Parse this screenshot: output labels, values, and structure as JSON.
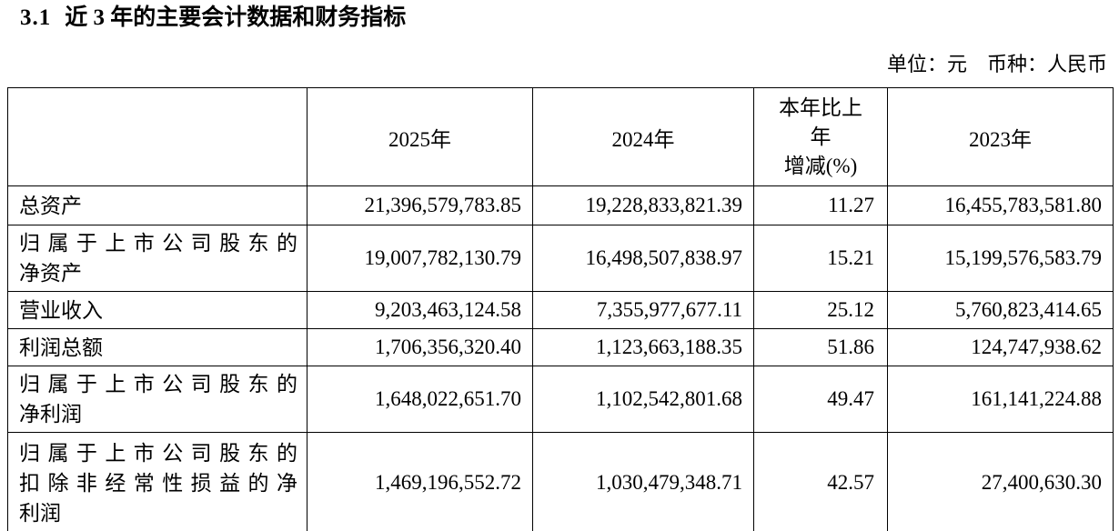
{
  "document": {
    "section_number": "3.1",
    "section_title": "近 3 年的主要会计数据和财务指标",
    "unit_note": "单位：元　币种：人民币"
  },
  "table": {
    "indicator_header": "",
    "year_headers": [
      "2025年",
      "2024年",
      "2023年"
    ],
    "change_header_lines": [
      "本年比上",
      "年",
      "增减(%)"
    ],
    "change_header_full": "本年比上年增减(%)",
    "rows": [
      {
        "indicator": "总资产",
        "indicator_lines": [
          "总资产"
        ],
        "values": [
          "21,396,579,783.85",
          "19,228,833,821.39",
          "11.27",
          "16,455,783,581.80"
        ]
      },
      {
        "indicator": "归属于上市公司股东的净资产",
        "indicator_lines": [
          "归属于上市公司股东的",
          "净资产"
        ],
        "values": [
          "19,007,782,130.79",
          "16,498,507,838.97",
          "15.21",
          "15,199,576,583.79"
        ]
      },
      {
        "indicator": "营业收入",
        "indicator_lines": [
          "营业收入"
        ],
        "values": [
          "9,203,463,124.58",
          "7,355,977,677.11",
          "25.12",
          "5,760,823,414.65"
        ]
      },
      {
        "indicator": "利润总额",
        "indicator_lines": [
          "利润总额"
        ],
        "values": [
          "1,706,356,320.40",
          "1,123,663,188.35",
          "51.86",
          "124,747,938.62"
        ]
      },
      {
        "indicator": "归属于上市公司股东的净利润",
        "indicator_lines": [
          "归属于上市公司股东的",
          "净利润"
        ],
        "values": [
          "1,648,022,651.70",
          "1,102,542,801.68",
          "49.47",
          "161,141,224.88"
        ]
      },
      {
        "indicator": "归属于上市公司股东的扣除非经常性损益的净利润",
        "indicator_lines": [
          "归属于上市公司股东的",
          "扣除非经常性损益的净",
          "利润"
        ],
        "values": [
          "1,469,196,552.72",
          "1,030,479,348.71",
          "42.57",
          "27,400,630.30"
        ]
      }
    ]
  }
}
